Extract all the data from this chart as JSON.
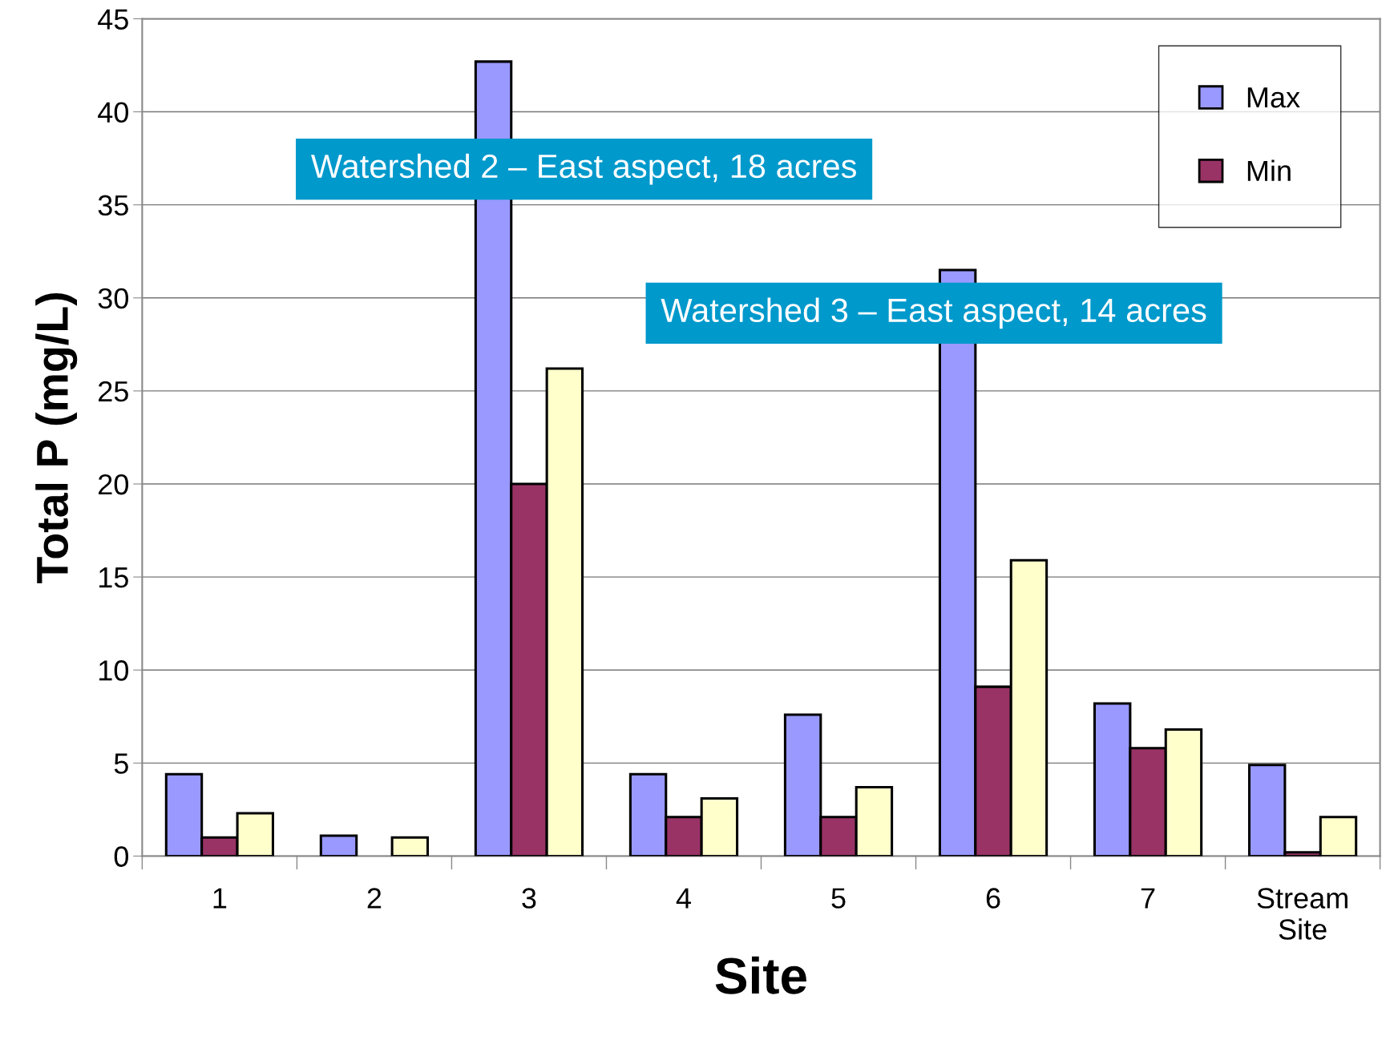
{
  "chart_data": {
    "type": "bar",
    "xlabel": "Site",
    "ylabel": "Total P (mg/L)",
    "categories": [
      "1",
      "2",
      "3",
      "4",
      "5",
      "6",
      "7",
      "Stream\nSite"
    ],
    "series": [
      {
        "name": "Max",
        "color": "#9999ff",
        "values": [
          4.4,
          1.1,
          42.7,
          4.4,
          7.6,
          31.5,
          8.2,
          4.9
        ]
      },
      {
        "name": "Min",
        "color": "#993366",
        "values": [
          1.0,
          null,
          20.0,
          2.1,
          2.1,
          9.1,
          5.8,
          0.2
        ]
      },
      {
        "color": "#ffffcc",
        "values": [
          2.3,
          1.0,
          26.2,
          3.1,
          3.7,
          15.9,
          6.8,
          2.1
        ]
      }
    ],
    "ylim": [
      0,
      45
    ],
    "yticks": [
      0,
      5,
      10,
      15,
      20,
      25,
      30,
      35,
      40,
      45
    ],
    "grid": "y",
    "legend": "top right",
    "annotations": [
      "Watershed 2 – East aspect, 18 acres",
      "Watershed 3 – East aspect, 14 acres"
    ]
  }
}
